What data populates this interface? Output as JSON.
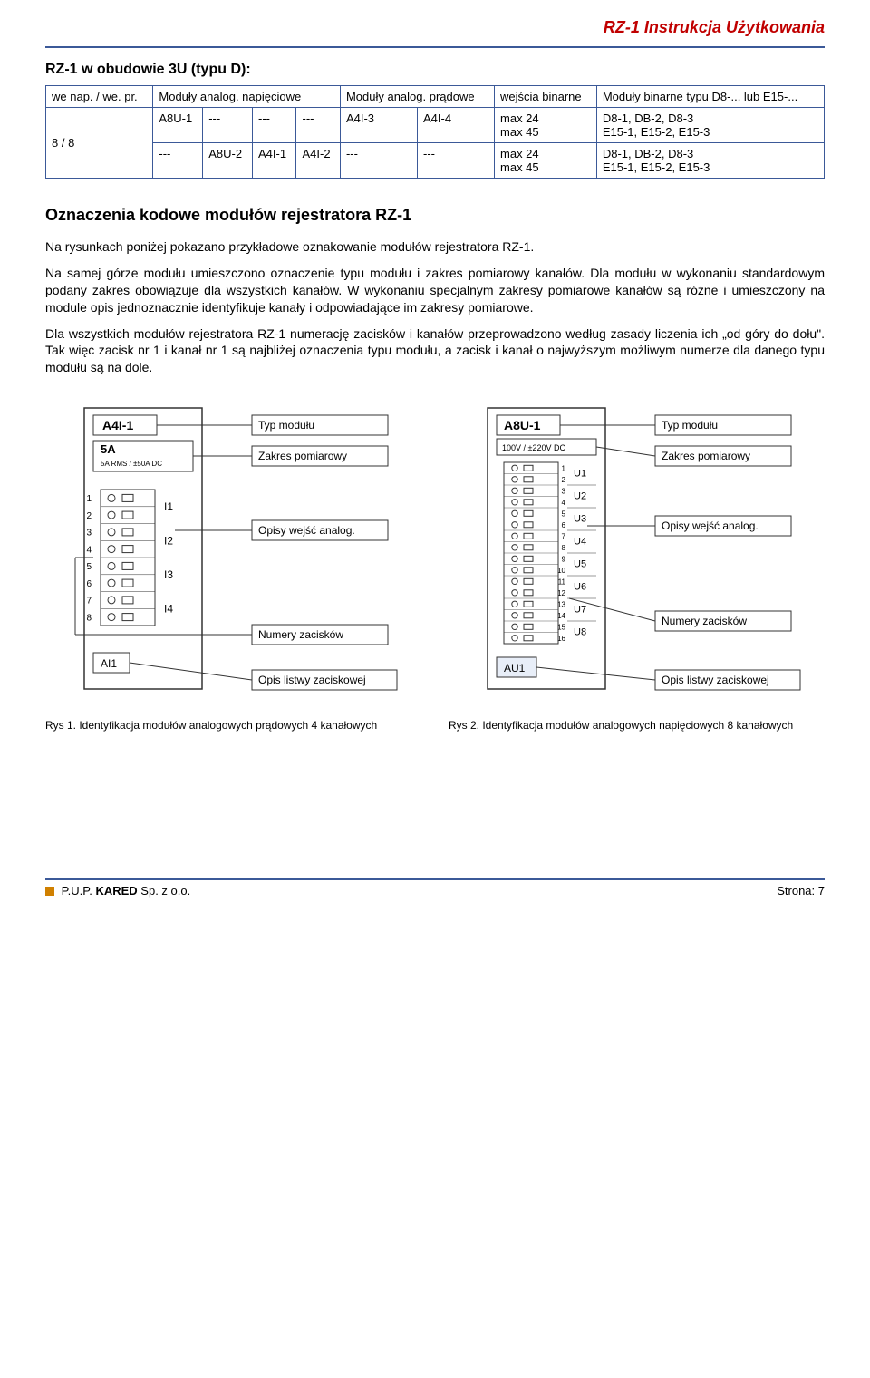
{
  "header": {
    "doc_title": "RZ-1  Instrukcja Użytkowania"
  },
  "section": {
    "title": "RZ-1 w obudowie 3U (typu D):"
  },
  "table": {
    "headers": {
      "c1": "we nap. / we. pr.",
      "c2": "Moduły analog. napięciowe",
      "c3": "Moduły analog. prądowe",
      "c4": "wejścia binarne",
      "c5": "Moduły binarne typu D8-... lub E15-..."
    },
    "rows": [
      {
        "c1": "8 / 8",
        "c2a": "A8U-1",
        "c2b": "---",
        "c2c": "---",
        "c2d": "---",
        "c3a": "A4I-3",
        "c3b": "A4I-4",
        "c4": "max 24\nmax 45",
        "c5": "D8-1, DB-2, D8-3\nE15-1, E15-2, E15-3"
      },
      {
        "c1": "",
        "c2a": "---",
        "c2b": "A8U-2",
        "c2c": "A4I-1",
        "c2d": "A4I-2",
        "c3a": "---",
        "c3b": "---",
        "c4": "max 24\nmax 45",
        "c5": "D8-1, DB-2, D8-3\nE15-1, E15-2, E15-3"
      }
    ]
  },
  "heading2": "Oznaczenia kodowe modułów rejestratora RZ-1",
  "para1": "Na rysunkach poniżej pokazano przykładowe oznakowanie modułów rejestratora RZ-1.",
  "para2": "Na samej górze modułu umieszczono oznaczenie typu modułu i zakres pomiarowy kanałów. Dla modułu w wykonaniu standardowym podany zakres obowiązuje dla wszystkich kanałów. W wykonaniu specjalnym zakresy pomiarowe kanałów są różne i umieszczony na module opis jednoznacznie identyfikuje kanały i odpowiadające im zakresy pomiarowe.",
  "para3": "Dla wszystkich modułów rejestratora RZ-1 numerację zacisków i kanałów przeprowadzono według zasady liczenia ich „od góry do dołu\". Tak więc zacisk nr 1 i kanał nr 1 są najbliżej oznaczenia typu modułu, a zacisk i kanał o najwyższym możliwym numerze dla danego typu modułu są na dole.",
  "diagramA": {
    "module_name": "A4I-1",
    "range_label": "5A",
    "range_sub": "5A RMS / ±50A DC",
    "terminal_nums": [
      "1",
      "2",
      "3",
      "4",
      "5",
      "6",
      "7",
      "8"
    ],
    "channels": [
      "I1",
      "I2",
      "I3",
      "I4"
    ],
    "strip_label": "AI1",
    "callouts": {
      "typ": "Typ modułu",
      "zakres": "Zakres pomiarowy",
      "opisy": "Opisy wejść analog.",
      "numery": "Numery zacisków",
      "listwa": "Opis listwy zaciskowej"
    }
  },
  "diagramB": {
    "module_name": "A8U-1",
    "range_label": "100V / ±220V DC",
    "terminal_nums": [
      "1",
      "2",
      "3",
      "4",
      "5",
      "6",
      "7",
      "8",
      "9",
      "10",
      "11",
      "12",
      "13",
      "14",
      "15",
      "16"
    ],
    "channels": [
      "U1",
      "U2",
      "U3",
      "U4",
      "U5",
      "U6",
      "U7",
      "U8"
    ],
    "strip_label": "AU1",
    "callouts": {
      "typ": "Typ modułu",
      "zakres": "Zakres pomiarowy",
      "opisy": "Opisy wejść analog.",
      "numery": "Numery zacisków",
      "listwa": "Opis listwy zaciskowej"
    }
  },
  "fig1": "Rys 1. Identyfikacja modułów analogowych prądowych 4 kanałowych",
  "fig2": "Rys 2. Identyfikacja modułów analogowych napięciowych 8 kanałowych",
  "footer": {
    "left_prefix": "P.U.P. ",
    "left_bold": "KARED",
    "left_suffix": " Sp. z o.o.",
    "right": "Strona: 7"
  },
  "colors": {
    "accent_blue": "#3b5998",
    "header_red": "#c00000",
    "diagram_stroke": "#333333",
    "diagram_fill": "#ffffff"
  }
}
